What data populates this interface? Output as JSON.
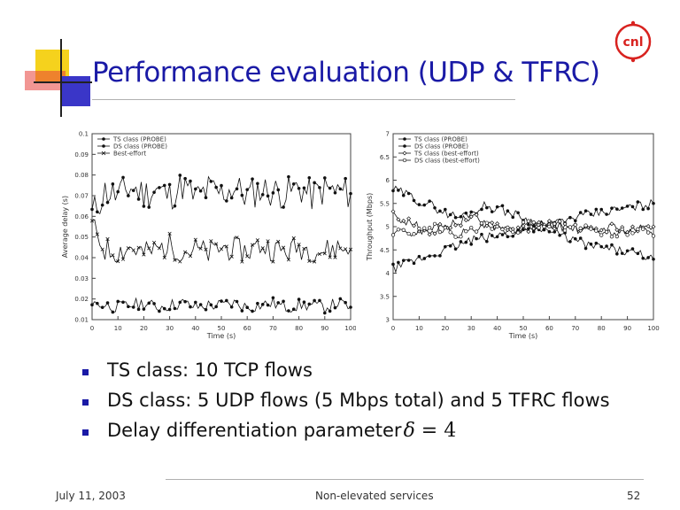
{
  "slide": {
    "title": "Performance evaluation (UDP & TFRC)",
    "bullets": [
      {
        "text": "TS class: 10 TCP flows"
      },
      {
        "text": "DS class: 5 UDP flows (5 Mbps total) and 5 TFRC flows"
      },
      {
        "text": "Delay differentiation parameter",
        "formula_symbol": "δ",
        "formula_rest": " = 4"
      }
    ],
    "footer": {
      "date": "July 11, 2003",
      "center": "Non-elevated services",
      "page": "52"
    },
    "logo_text": "cnl",
    "colors": {
      "title": "#1a1aa6",
      "deco_yellow": "#f5d21d",
      "deco_red": "#e8403a",
      "deco_blue": "#3a36c8",
      "logo_red": "#d8221f"
    }
  },
  "chart_data": [
    {
      "type": "line",
      "xlabel": "Time (s)",
      "ylabel": "Average delay (s)",
      "xlim": [
        0,
        100
      ],
      "ylim": [
        0.01,
        0.1
      ],
      "xticks": [
        0,
        10,
        20,
        30,
        40,
        50,
        60,
        70,
        80,
        90,
        100
      ],
      "yticks": [
        0.01,
        0.02,
        0.03,
        0.04,
        0.05,
        0.06,
        0.07,
        0.08,
        0.09,
        0.1
      ],
      "legend": [
        "TS class (PROBE)",
        "DS class (PROBE)",
        "Best-effort"
      ],
      "series": [
        {
          "name": "TS class (PROBE)",
          "marker": "dot",
          "center": 0.072,
          "noise": 0.008,
          "x": [
            0,
            5,
            10,
            15,
            20,
            25,
            30,
            35,
            40,
            45,
            50,
            55,
            60,
            65,
            70,
            75,
            80,
            85,
            90,
            95,
            100
          ],
          "values": [
            0.061,
            0.072,
            0.07,
            0.074,
            0.071,
            0.073,
            0.07,
            0.075,
            0.069,
            0.073,
            0.071,
            0.074,
            0.07,
            0.073,
            0.072,
            0.071,
            0.074,
            0.07,
            0.073,
            0.072,
            0.071
          ]
        },
        {
          "name": "DS class (PROBE)",
          "marker": "dot",
          "center": 0.017,
          "noise": 0.003,
          "x": [
            0,
            5,
            10,
            15,
            20,
            25,
            30,
            35,
            40,
            45,
            50,
            55,
            60,
            65,
            70,
            75,
            80,
            85,
            90,
            95,
            100
          ],
          "values": [
            0.018,
            0.017,
            0.016,
            0.017,
            0.018,
            0.016,
            0.017,
            0.018,
            0.016,
            0.017,
            0.017,
            0.018,
            0.016,
            0.017,
            0.018,
            0.016,
            0.017,
            0.017,
            0.016,
            0.018,
            0.016
          ]
        },
        {
          "name": "Best-effort",
          "marker": "x",
          "center": 0.044,
          "noise": 0.006,
          "x": [
            0,
            5,
            10,
            15,
            20,
            25,
            30,
            35,
            40,
            45,
            50,
            55,
            60,
            65,
            70,
            75,
            80,
            85,
            90,
            95,
            100
          ],
          "values": [
            0.055,
            0.044,
            0.043,
            0.045,
            0.042,
            0.044,
            0.046,
            0.043,
            0.044,
            0.042,
            0.045,
            0.044,
            0.043,
            0.046,
            0.044,
            0.043,
            0.045,
            0.044,
            0.043,
            0.045,
            0.044
          ]
        }
      ]
    },
    {
      "type": "line",
      "xlabel": "Time (s)",
      "ylabel": "Throughput (Mbps)",
      "xlim": [
        0,
        100
      ],
      "ylim": [
        3,
        7
      ],
      "xticks": [
        0,
        10,
        20,
        30,
        40,
        50,
        60,
        70,
        80,
        90,
        100
      ],
      "yticks": [
        3,
        3.5,
        4,
        4.5,
        5,
        5.5,
        6,
        6.5,
        7
      ],
      "legend": [
        "TS class (PROBE)",
        "DS class (PROBE)",
        "TS class (best-effort)",
        "DS class (best-effort)"
      ],
      "series": [
        {
          "name": "TS class (PROBE)",
          "marker": "dot",
          "x": [
            0,
            5,
            10,
            15,
            20,
            25,
            30,
            35,
            40,
            45,
            50,
            55,
            60,
            65,
            70,
            75,
            80,
            85,
            90,
            95,
            100
          ],
          "values": [
            5.8,
            5.7,
            5.55,
            5.45,
            5.3,
            5.2,
            5.3,
            5.45,
            5.4,
            5.3,
            5.2,
            5.05,
            4.9,
            4.8,
            4.7,
            4.6,
            4.55,
            4.5,
            4.45,
            4.4,
            4.3
          ]
        },
        {
          "name": "DS class (PROBE)",
          "marker": "dot",
          "x": [
            0,
            5,
            10,
            15,
            20,
            25,
            30,
            35,
            40,
            45,
            50,
            55,
            60,
            65,
            70,
            75,
            80,
            85,
            90,
            95,
            100
          ],
          "values": [
            4.1,
            4.2,
            4.3,
            4.4,
            4.5,
            4.6,
            4.7,
            4.75,
            4.8,
            4.85,
            4.9,
            5.0,
            5.05,
            5.1,
            5.2,
            5.25,
            5.3,
            5.35,
            5.4,
            5.45,
            5.5
          ]
        },
        {
          "name": "TS class (best-effort)",
          "marker": "diamond",
          "x": [
            0,
            5,
            10,
            15,
            20,
            25,
            30,
            35,
            40,
            45,
            50,
            55,
            60,
            65,
            70,
            75,
            80,
            85,
            90,
            95,
            100
          ],
          "values": [
            5.3,
            5.1,
            5.0,
            4.9,
            5.0,
            5.1,
            5.2,
            5.1,
            5.0,
            4.9,
            4.95,
            5.0,
            5.1,
            5.0,
            4.95,
            4.9,
            4.95,
            5.0,
            4.9,
            4.95,
            5.0
          ]
        },
        {
          "name": "DS class (best-effort)",
          "marker": "circle",
          "x": [
            0,
            5,
            10,
            15,
            20,
            25,
            30,
            35,
            40,
            45,
            50,
            55,
            60,
            65,
            70,
            75,
            80,
            85,
            90,
            95,
            100
          ],
          "values": [
            4.9,
            4.85,
            4.9,
            5.0,
            4.95,
            4.85,
            4.9,
            5.0,
            4.95,
            4.9,
            5.0,
            5.05,
            5.1,
            5.0,
            4.95,
            5.0,
            4.9,
            4.85,
            4.9,
            4.95,
            4.8
          ]
        }
      ]
    }
  ]
}
